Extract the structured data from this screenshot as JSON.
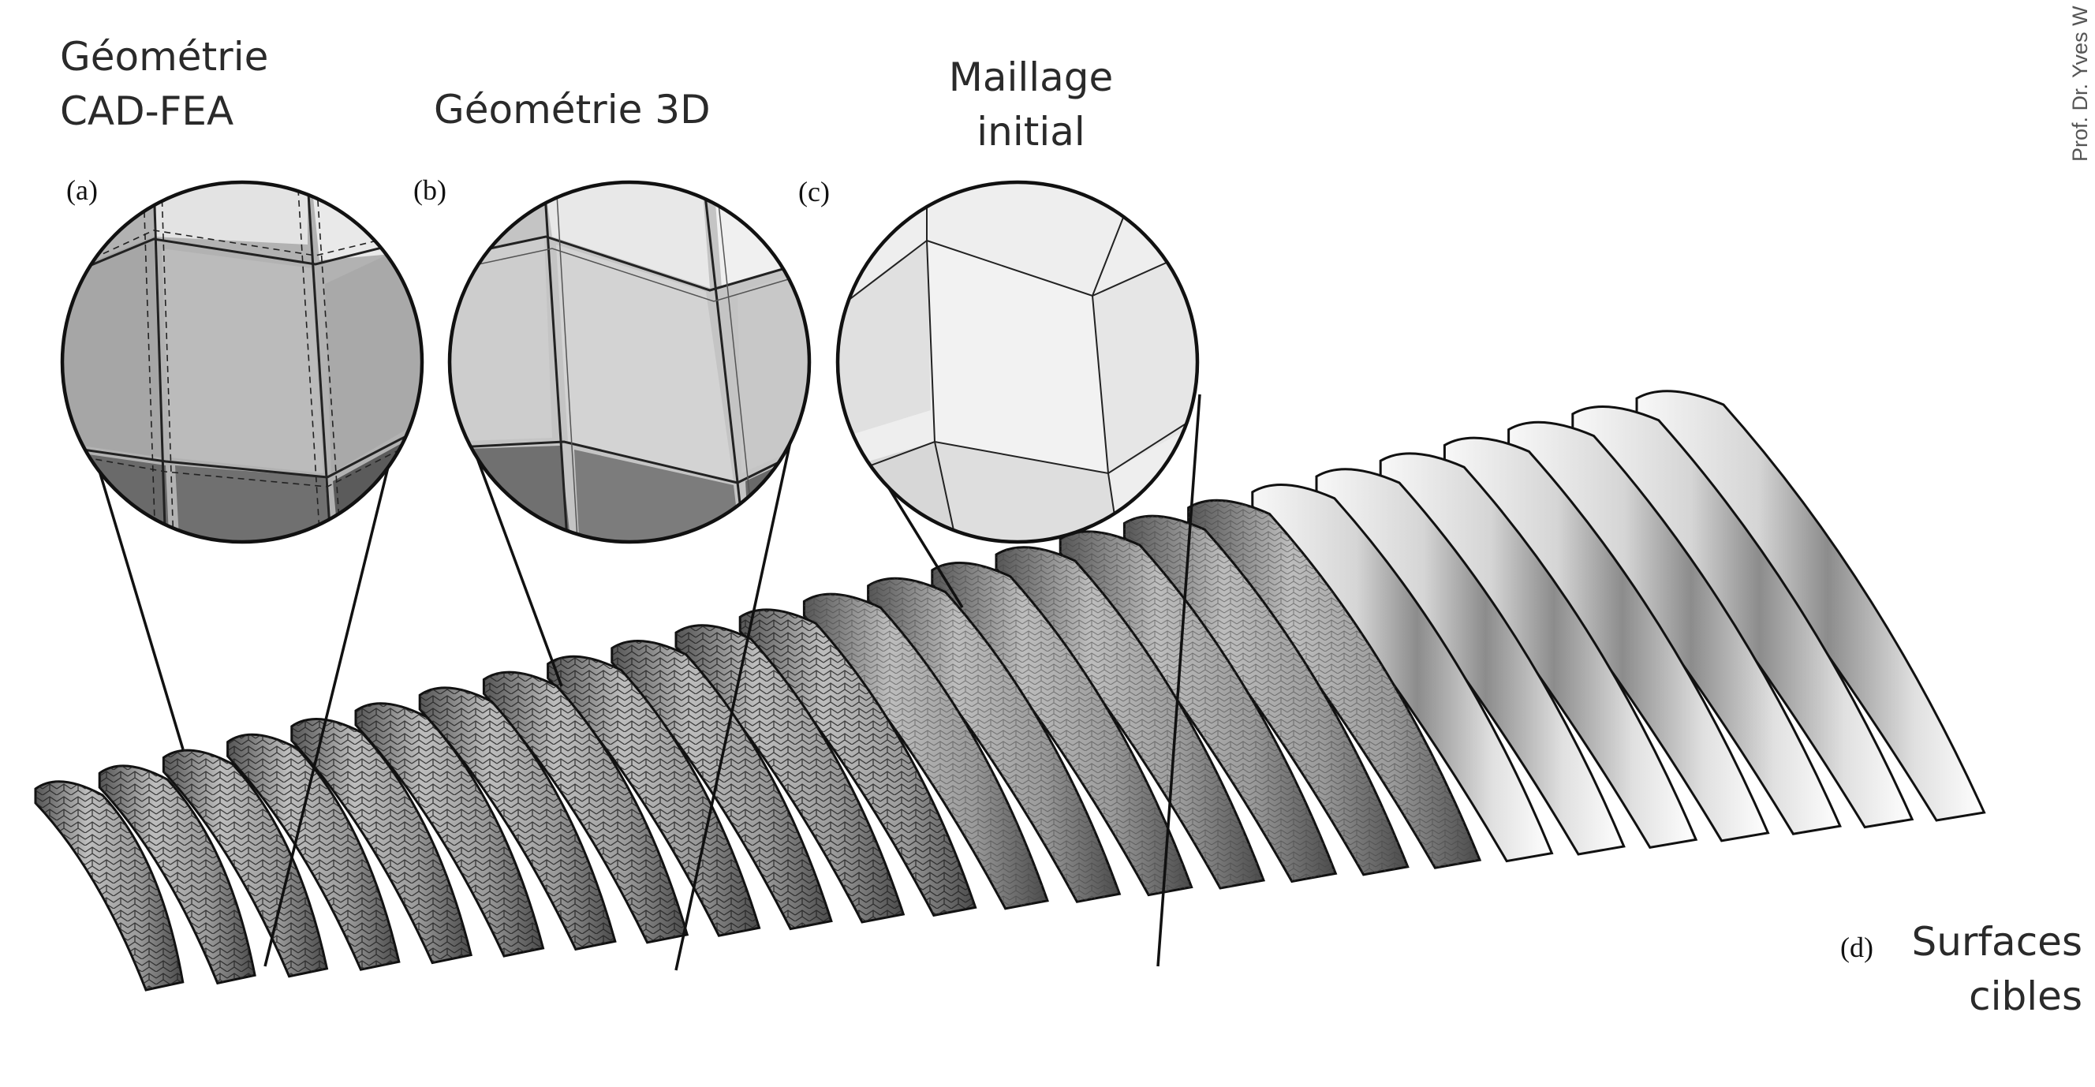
{
  "headings": {
    "a": "Géométrie\nCAD-FEA",
    "b": "Géométrie 3D",
    "c": "Maillage\ninitial",
    "d": "Surfaces\ncibles"
  },
  "labels": {
    "a": "(a)",
    "b": "(b)",
    "c": "(c)",
    "d": "(d)"
  },
  "credit": "Prof. Dr. Yves W",
  "colors": {
    "stroke": "#111111",
    "panel_dark": "#6e6e6e",
    "panel_mid": "#a9a9a9",
    "panel_light": "#e6e6e6"
  },
  "icons": {
    "magnifier_a": "zoom-circle",
    "magnifier_b": "zoom-circle",
    "magnifier_c": "zoom-circle"
  }
}
